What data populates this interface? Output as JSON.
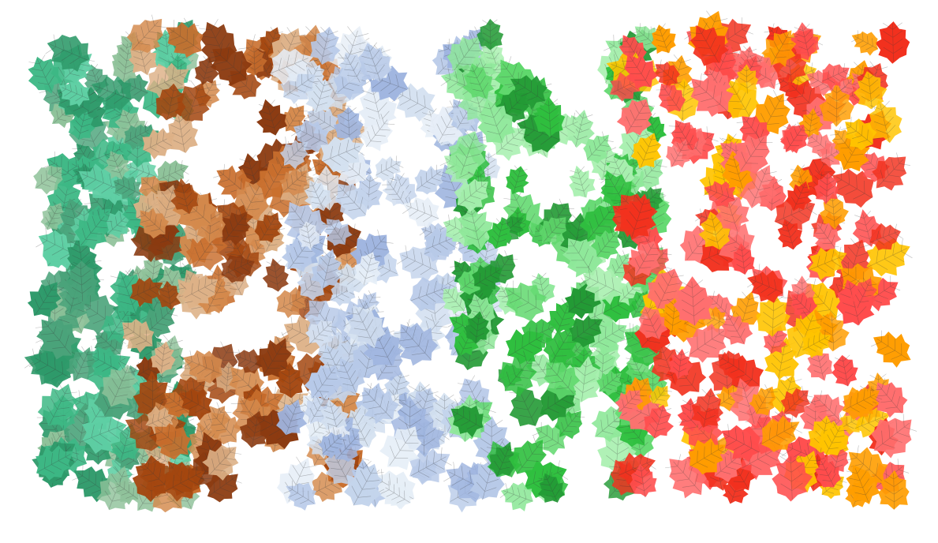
{
  "background": "#ffffff",
  "vein_color": "#3a3a3a",
  "bands": [
    {
      "name": "teal-green",
      "colors": [
        "#5fcfa4",
        "#3db885",
        "#2e9a6a",
        "#8fc29a",
        "#4aa37a"
      ]
    },
    {
      "name": "brown",
      "colors": [
        "#8b3a10",
        "#a3460f",
        "#c96f2e",
        "#d48a4d",
        "#ddb187"
      ]
    },
    {
      "name": "pale-blue",
      "colors": [
        "#9fb5df",
        "#b7c9e8",
        "#d3e0f0",
        "#e6eef7",
        "#c4d4ec"
      ]
    },
    {
      "name": "green",
      "colors": [
        "#2fbf3f",
        "#8fe89a",
        "#a9f0b0",
        "#239a35",
        "#60d86d"
      ]
    },
    {
      "name": "warm",
      "colors": [
        "#ff4d4d",
        "#ffc400",
        "#ff9d00",
        "#ff6f6f",
        "#f2311e"
      ]
    }
  ]
}
